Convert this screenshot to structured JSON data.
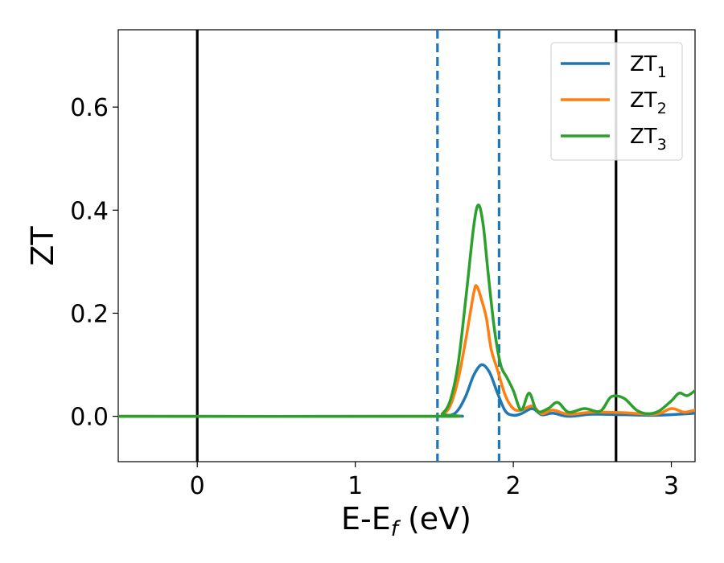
{
  "chart_data": {
    "type": "line",
    "xlabel": "E-E",
    "xlabel_sub": "f",
    "xlabel_unit": " (eV)",
    "ylabel": "ZT",
    "xlim": [
      -0.5,
      3.15
    ],
    "ylim": [
      -0.088,
      0.75
    ],
    "xticks": [
      0,
      1,
      2,
      3
    ],
    "xtick_labels": [
      "0",
      "1",
      "2",
      "3"
    ],
    "yticks": [
      0.0,
      0.2,
      0.4,
      0.6
    ],
    "ytick_labels": [
      "0.0",
      "0.2",
      "0.4",
      "0.6"
    ],
    "grid": false,
    "legend_position": "top-right",
    "vlines": [
      {
        "x": 0.0,
        "style": "solid",
        "color": "#000000"
      },
      {
        "x": 1.52,
        "style": "dashed",
        "color": "#1f77b4"
      },
      {
        "x": 1.91,
        "style": "dashed",
        "color": "#1f77b4"
      },
      {
        "x": 2.65,
        "style": "solid",
        "color": "#000000"
      }
    ],
    "series": [
      {
        "name": "ZT",
        "name_sub": "1",
        "color": "#1f77b4",
        "points": [
          [
            -0.5,
            0
          ],
          [
            1.5,
            0
          ],
          [
            1.6,
            0.002
          ],
          [
            1.65,
            0.012
          ],
          [
            1.7,
            0.04
          ],
          [
            1.75,
            0.08
          ],
          [
            1.8,
            0.1
          ],
          [
            1.85,
            0.085
          ],
          [
            1.9,
            0.045
          ],
          [
            1.95,
            0.01
          ],
          [
            2.0,
            0.002
          ],
          [
            2.05,
            0.005
          ],
          [
            2.12,
            0.015
          ],
          [
            2.18,
            0.003
          ],
          [
            2.25,
            0.006
          ],
          [
            2.35,
            0.0
          ],
          [
            2.5,
            0.004
          ],
          [
            2.7,
            0.003
          ],
          [
            2.9,
            0.002
          ],
          [
            3.05,
            0.004
          ],
          [
            3.15,
            0.006
          ]
        ]
      },
      {
        "name": "ZT",
        "name_sub": "2",
        "color": "#ff7f0e",
        "points": [
          [
            -0.5,
            0
          ],
          [
            1.5,
            0
          ],
          [
            1.55,
            0.003
          ],
          [
            1.6,
            0.02
          ],
          [
            1.65,
            0.07
          ],
          [
            1.7,
            0.15
          ],
          [
            1.75,
            0.24
          ],
          [
            1.77,
            0.252
          ],
          [
            1.8,
            0.225
          ],
          [
            1.83,
            0.19
          ],
          [
            1.86,
            0.13
          ],
          [
            1.9,
            0.09
          ],
          [
            1.95,
            0.04
          ],
          [
            2.0,
            0.015
          ],
          [
            2.05,
            0.012
          ],
          [
            2.12,
            0.02
          ],
          [
            2.18,
            0.005
          ],
          [
            2.25,
            0.012
          ],
          [
            2.35,
            0.004
          ],
          [
            2.5,
            0.008
          ],
          [
            2.7,
            0.007
          ],
          [
            2.9,
            0.004
          ],
          [
            3.0,
            0.015
          ],
          [
            3.08,
            0.008
          ],
          [
            3.15,
            0.012
          ]
        ]
      },
      {
        "name": "ZT",
        "name_sub": "3",
        "color": "#2ca02c",
        "points": [
          [
            -0.5,
            0
          ],
          [
            1.5,
            0
          ],
          [
            1.55,
            0.005
          ],
          [
            1.6,
            0.03
          ],
          [
            1.65,
            0.1
          ],
          [
            1.7,
            0.23
          ],
          [
            1.75,
            0.37
          ],
          [
            1.78,
            0.41
          ],
          [
            1.81,
            0.37
          ],
          [
            1.84,
            0.28
          ],
          [
            1.88,
            0.17
          ],
          [
            1.92,
            0.1
          ],
          [
            1.96,
            0.075
          ],
          [
            2.0,
            0.05
          ],
          [
            2.05,
            0.012
          ],
          [
            2.1,
            0.045
          ],
          [
            2.15,
            0.01
          ],
          [
            2.22,
            0.015
          ],
          [
            2.28,
            0.027
          ],
          [
            2.35,
            0.008
          ],
          [
            2.45,
            0.015
          ],
          [
            2.55,
            0.01
          ],
          [
            2.62,
            0.038
          ],
          [
            2.7,
            0.035
          ],
          [
            2.78,
            0.012
          ],
          [
            2.85,
            0.005
          ],
          [
            2.92,
            0.01
          ],
          [
            3.0,
            0.03
          ],
          [
            3.05,
            0.045
          ],
          [
            3.1,
            0.04
          ],
          [
            3.15,
            0.05
          ]
        ]
      }
    ]
  }
}
